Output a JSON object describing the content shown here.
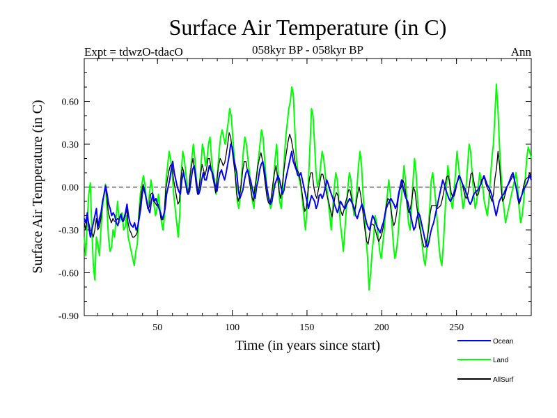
{
  "chart_data": {
    "type": "line",
    "title": "Surface Air Temperature (in C)",
    "subtitle": "058kyr BP - 058kyr BP",
    "expt_label": "Expt = tdwzO-tdacO",
    "season_label": "Ann",
    "xlabel": "Time (in years since start)",
    "ylabel": "Surface Air Temperature (in C)",
    "xlim": [
      1,
      300
    ],
    "ylim": [
      -0.9,
      0.9
    ],
    "x_ticks": [
      50,
      100,
      150,
      200,
      250
    ],
    "y_ticks": [
      "-0.90",
      "-0.60",
      "-0.30",
      "0.00",
      "0.30",
      "0.60"
    ],
    "zero_line": true,
    "grid": false,
    "legend_position": "bottom-right",
    "series": [
      {
        "name": "Ocean",
        "color": "#0000ff",
        "values": [
          -0.22,
          -0.25,
          -0.18,
          -0.28,
          -0.35,
          -0.3,
          -0.25,
          -0.2,
          -0.15,
          -0.28,
          -0.22,
          -0.18,
          -0.1,
          -0.05,
          0.01,
          -0.05,
          -0.12,
          -0.15,
          -0.2,
          -0.18,
          -0.2,
          -0.25,
          -0.27,
          -0.22,
          -0.19,
          -0.24,
          -0.22,
          -0.18,
          -0.12,
          -0.2,
          -0.25,
          -0.27,
          -0.28,
          -0.25,
          -0.3,
          -0.28,
          -0.22,
          -0.15,
          -0.05,
          0.0,
          -0.05,
          -0.1,
          -0.15,
          -0.18,
          -0.1,
          -0.05,
          -0.1,
          -0.08,
          -0.12,
          -0.15,
          -0.18,
          -0.22,
          -0.2,
          -0.15,
          -0.05,
          0.0,
          0.05,
          0.12,
          0.18,
          0.1,
          0.05,
          0.0,
          -0.03,
          -0.05,
          0.05,
          0.1,
          0.05,
          0.0,
          -0.05,
          -0.03,
          0.05,
          0.12,
          0.15,
          0.08,
          0.0,
          -0.05,
          -0.02,
          0.05,
          0.1,
          0.05,
          0.05,
          0.1,
          0.15,
          0.12,
          0.1,
          0.05,
          0.0,
          -0.03,
          0.05,
          0.1,
          0.12,
          0.08,
          0.05,
          0.1,
          0.16,
          0.22,
          0.3,
          0.28,
          0.2,
          0.15,
          0.1,
          -0.02,
          -0.08,
          -0.05,
          -0.02,
          0.05,
          0.1,
          0.12,
          0.08,
          0.05,
          0.0,
          -0.05,
          -0.08,
          0.0,
          0.05,
          0.12,
          0.16,
          0.18,
          0.12,
          0.05,
          -0.02,
          -0.08,
          -0.12,
          -0.1,
          -0.04,
          0.02,
          0.05,
          0.08,
          0.05,
          0.0,
          -0.05,
          -0.02,
          0.05,
          0.1,
          0.15,
          0.2,
          0.25,
          0.18,
          0.15,
          0.12,
          0.08,
          0.08,
          0.1,
          0.05,
          0.0,
          -0.05,
          -0.1,
          -0.15,
          -0.1,
          -0.06,
          -0.08,
          -0.1,
          -0.15,
          -0.12,
          -0.06,
          -0.05,
          -0.08,
          -0.05,
          0.0,
          0.05,
          0.02,
          -0.02,
          -0.05,
          -0.08,
          -0.12,
          -0.15,
          -0.18,
          -0.14,
          -0.1,
          -0.12,
          -0.14,
          -0.15,
          -0.12,
          -0.1,
          -0.08,
          -0.1,
          -0.12,
          -0.15,
          -0.2,
          -0.22,
          -0.18,
          -0.15,
          -0.12,
          -0.15,
          -0.2,
          -0.25,
          -0.28,
          -0.3,
          -0.25,
          -0.2,
          -0.22,
          -0.25,
          -0.28,
          -0.3,
          -0.32,
          -0.28,
          -0.25,
          -0.2,
          -0.15,
          -0.12,
          -0.1,
          -0.08,
          -0.1,
          -0.12,
          -0.15,
          -0.12,
          -0.05,
          0.0,
          0.05,
          0.0,
          -0.05,
          -0.08,
          -0.1,
          -0.15,
          -0.2,
          -0.25,
          -0.3,
          -0.28,
          -0.22,
          -0.18,
          -0.2,
          -0.25,
          -0.3,
          -0.35,
          -0.4,
          -0.42,
          -0.38,
          -0.32,
          -0.28,
          -0.25,
          -0.2,
          -0.15,
          -0.1,
          -0.05,
          0.0,
          0.05,
          0.02,
          -0.02,
          -0.05,
          -0.08,
          -0.1,
          -0.08,
          -0.05,
          -0.02,
          0.02,
          0.05,
          0.08,
          0.05,
          0.02,
          0.0,
          -0.03,
          -0.06,
          -0.1,
          -0.12,
          -0.1,
          -0.06,
          -0.04,
          -0.03,
          -0.02,
          0.0,
          0.02,
          0.05,
          0.08,
          0.05,
          0.02,
          0.0,
          -0.02,
          -0.05,
          -0.1,
          -0.15,
          -0.2,
          -0.15,
          -0.1,
          -0.08,
          -0.06,
          -0.05,
          -0.02,
          0.0,
          0.02,
          0.05,
          0.08,
          0.1,
          0.05,
          0.0,
          -0.05,
          -0.1,
          -0.08,
          -0.05,
          -0.02,
          0.0,
          0.02,
          0.05,
          0.08,
          0.05
        ]
      },
      {
        "name": "Land",
        "color": "#00ff00",
        "values": [
          -0.35,
          -0.48,
          -0.22,
          -0.05,
          0.03,
          -0.3,
          -0.55,
          -0.65,
          -0.35,
          -0.4,
          -0.48,
          -0.3,
          -0.15,
          -0.05,
          0.02,
          -0.15,
          -0.35,
          -0.45,
          -0.42,
          -0.3,
          -0.35,
          -0.22,
          -0.1,
          -0.25,
          -0.2,
          -0.18,
          -0.3,
          -0.28,
          -0.2,
          -0.35,
          -0.4,
          -0.45,
          -0.5,
          -0.55,
          -0.45,
          -0.4,
          -0.2,
          -0.05,
          0.02,
          0.08,
          0.02,
          -0.08,
          -0.15,
          -0.05,
          0.05,
          -0.02,
          -0.12,
          -0.2,
          -0.15,
          -0.05,
          -0.15,
          -0.25,
          -0.3,
          -0.2,
          0.05,
          0.15,
          0.25,
          0.2,
          0.1,
          -0.05,
          -0.15,
          -0.25,
          -0.35,
          -0.2,
          0.1,
          0.25,
          0.2,
          0.1,
          0.0,
          -0.05,
          0.1,
          0.2,
          0.3,
          0.2,
          0.05,
          -0.05,
          0.0,
          0.15,
          0.3,
          0.25,
          0.15,
          0.2,
          0.3,
          0.35,
          0.2,
          0.1,
          0.05,
          -0.05,
          0.1,
          0.25,
          0.35,
          0.4,
          0.35,
          0.3,
          0.38,
          0.45,
          0.55,
          0.5,
          0.35,
          0.2,
          0.05,
          -0.1,
          -0.15,
          -0.05,
          0.1,
          0.25,
          0.35,
          0.3,
          0.2,
          0.1,
          0.0,
          -0.1,
          -0.15,
          0.0,
          0.1,
          0.2,
          0.3,
          0.4,
          0.35,
          0.2,
          0.05,
          -0.05,
          -0.1,
          -0.15,
          -0.1,
          0.05,
          0.2,
          0.3,
          0.1,
          -0.1,
          -0.15,
          0.0,
          0.2,
          0.35,
          0.45,
          0.55,
          0.6,
          0.7,
          0.65,
          0.4,
          0.2,
          0.1,
          0.05,
          0.0,
          -0.1,
          -0.2,
          -0.3,
          -0.15,
          0.05,
          0.3,
          0.55,
          0.5,
          0.3,
          0.1,
          0.0,
          0.05,
          0.15,
          0.25,
          0.2,
          0.1,
          0.0,
          -0.1,
          -0.2,
          -0.3,
          -0.15,
          0.0,
          0.1,
          0.05,
          -0.1,
          -0.25,
          -0.35,
          -0.45,
          -0.3,
          -0.15,
          0.0,
          0.1,
          0.05,
          -0.1,
          -0.2,
          -0.15,
          0.0,
          0.15,
          0.25,
          0.15,
          -0.05,
          -0.2,
          -0.35,
          -0.5,
          -0.72,
          -0.6,
          -0.45,
          -0.35,
          -0.2,
          -0.25,
          -0.35,
          -0.45,
          -0.5,
          -0.4,
          -0.3,
          -0.15,
          -0.05,
          0.05,
          -0.05,
          -0.25,
          -0.4,
          -0.5,
          -0.45,
          -0.35,
          -0.2,
          -0.1,
          0.0,
          0.15,
          0.05,
          -0.1,
          -0.25,
          -0.3,
          -0.15,
          0.05,
          0.2,
          0.1,
          -0.1,
          -0.2,
          -0.3,
          -0.4,
          -0.5,
          -0.55,
          -0.45,
          -0.3,
          -0.15,
          0.05,
          0.1,
          0.0,
          -0.1,
          -0.25,
          -0.4,
          -0.5,
          -0.55,
          -0.4,
          -0.2,
          0.0,
          0.15,
          0.05,
          -0.1,
          -0.15,
          -0.05,
          0.1,
          0.25,
          0.15,
          0.05,
          -0.05,
          -0.15,
          -0.1,
          0.0,
          0.15,
          0.3,
          0.25,
          0.1,
          -0.05,
          -0.15,
          -0.1,
          0.0,
          0.1,
          0.05,
          0.0,
          -0.1,
          -0.15,
          -0.2,
          -0.1,
          0.05,
          0.2,
          0.3,
          0.5,
          0.72,
          0.55,
          0.3,
          0.1,
          -0.05,
          -0.15,
          -0.25,
          -0.2,
          -0.15,
          -0.1,
          -0.05,
          0.0,
          0.05,
          0.1,
          0.0,
          -0.15,
          -0.25,
          -0.2,
          -0.1,
          0.05,
          0.2,
          0.28,
          0.25,
          0.2
        ]
      },
      {
        "name": "AllSurf",
        "color": "#000000",
        "values": [
          -0.25,
          -0.3,
          -0.2,
          -0.25,
          -0.3,
          -0.32,
          -0.35,
          -0.3,
          -0.22,
          -0.3,
          -0.28,
          -0.22,
          -0.12,
          -0.06,
          0.01,
          -0.07,
          -0.18,
          -0.22,
          -0.25,
          -0.22,
          -0.24,
          -0.24,
          -0.22,
          -0.23,
          -0.19,
          -0.22,
          -0.24,
          -0.21,
          -0.15,
          -0.25,
          -0.3,
          -0.32,
          -0.35,
          -0.35,
          -0.34,
          -0.32,
          -0.22,
          -0.12,
          -0.03,
          0.02,
          -0.03,
          -0.09,
          -0.15,
          -0.14,
          -0.05,
          -0.04,
          -0.1,
          -0.11,
          -0.13,
          -0.12,
          -0.17,
          -0.23,
          -0.23,
          -0.17,
          -0.02,
          0.05,
          0.11,
          0.15,
          0.16,
          0.06,
          0.0,
          -0.06,
          -0.12,
          -0.1,
          0.06,
          0.14,
          0.1,
          0.03,
          -0.04,
          -0.04,
          0.07,
          0.15,
          0.2,
          0.12,
          0.02,
          -0.05,
          -0.01,
          0.08,
          0.16,
          0.12,
          0.08,
          0.13,
          0.2,
          0.2,
          0.13,
          0.07,
          0.02,
          -0.04,
          0.07,
          0.15,
          0.2,
          0.18,
          0.15,
          0.17,
          0.23,
          0.3,
          0.38,
          0.35,
          0.25,
          0.17,
          0.08,
          -0.05,
          -0.1,
          -0.05,
          0.02,
          0.12,
          0.18,
          0.18,
          0.12,
          0.07,
          0.0,
          -0.07,
          -0.1,
          0.0,
          0.07,
          0.15,
          0.2,
          0.24,
          0.19,
          0.1,
          0.01,
          -0.07,
          -0.11,
          -0.12,
          -0.06,
          0.03,
          0.1,
          0.15,
          0.07,
          -0.03,
          -0.08,
          -0.01,
          0.1,
          0.18,
          0.25,
          0.32,
          0.37,
          0.34,
          0.28,
          0.22,
          0.15,
          0.12,
          0.1,
          0.05,
          -0.02,
          -0.1,
          -0.17,
          -0.15,
          -0.05,
          0.05,
          0.1,
          0.1,
          0.0,
          -0.05,
          -0.08,
          -0.02,
          0.03,
          0.09,
          0.09,
          0.04,
          -0.02,
          -0.07,
          -0.11,
          -0.16,
          -0.21,
          -0.15,
          -0.07,
          -0.04,
          -0.06,
          -0.12,
          -0.17,
          -0.2,
          -0.16,
          -0.11,
          -0.07,
          -0.02,
          -0.02,
          -0.08,
          -0.14,
          -0.17,
          -0.12,
          -0.05,
          0.0,
          -0.05,
          -0.13,
          -0.22,
          -0.31,
          -0.38,
          -0.4,
          -0.33,
          -0.26,
          -0.26,
          -0.27,
          -0.31,
          -0.35,
          -0.38,
          -0.36,
          -0.33,
          -0.28,
          -0.19,
          -0.13,
          -0.08,
          -0.09,
          -0.15,
          -0.22,
          -0.27,
          -0.24,
          -0.17,
          -0.08,
          -0.02,
          0.0,
          0.05,
          0.02,
          -0.06,
          -0.14,
          -0.18,
          -0.15,
          -0.08,
          0.0,
          -0.03,
          -0.12,
          -0.2,
          -0.28,
          -0.33,
          -0.38,
          -0.42,
          -0.42,
          -0.36,
          -0.3,
          -0.19,
          -0.13,
          -0.13,
          -0.13,
          -0.13,
          -0.15,
          -0.14,
          -0.13,
          -0.09,
          -0.04,
          0.02,
          0.07,
          0.08,
          0.03,
          -0.04,
          -0.07,
          -0.06,
          -0.02,
          0.04,
          0.08,
          0.06,
          0.04,
          -0.01,
          -0.06,
          -0.08,
          -0.05,
          0.01,
          0.09,
          0.1,
          0.04,
          -0.02,
          -0.06,
          -0.05,
          0.0,
          0.05,
          0.06,
          0.06,
          0.02,
          -0.01,
          -0.03,
          -0.07,
          -0.1,
          -0.05,
          0.06,
          0.13,
          0.25,
          0.15,
          0.0,
          -0.1,
          -0.08,
          -0.04,
          0.0,
          0.02,
          0.04,
          0.06,
          0.08,
          0.04,
          -0.01,
          -0.08,
          -0.12,
          -0.09,
          -0.04,
          0.01,
          0.05,
          0.06,
          0.07,
          0.1,
          0.07
        ]
      }
    ]
  }
}
